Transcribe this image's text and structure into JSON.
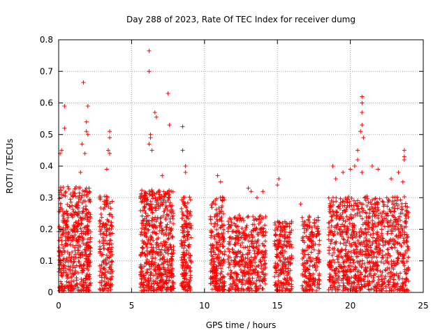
{
  "chart_data": {
    "type": "scatter",
    "title": "Day 288 of 2023, Rate Of TEC Index for receiver dumg",
    "xlabel": "GPS time / hours",
    "ylabel": "ROTI / TECUs",
    "xlim": [
      0,
      25
    ],
    "ylim": [
      0,
      0.8
    ],
    "xticks": [
      "0",
      "5",
      "10",
      "15",
      "20",
      "25"
    ],
    "yticks": [
      "0",
      "0.1",
      "0.2",
      "0.3",
      "0.4",
      "0.5",
      "0.6",
      "0.7",
      "0.8"
    ],
    "grid": true,
    "legend": "none",
    "marker": "plus",
    "color": "#ff0000",
    "series": [
      {
        "clusters": [
          {
            "x": [
              0.0,
              2.2
            ],
            "y_max": 0.33,
            "density": 520
          },
          {
            "x": [
              2.8,
              3.7
            ],
            "y_max": 0.3,
            "density": 180
          },
          {
            "x": [
              5.6,
              7.9
            ],
            "y_max": 0.32,
            "density": 560
          },
          {
            "x": [
              8.4,
              9.1
            ],
            "y_max": 0.3,
            "density": 170
          },
          {
            "x": [
              10.4,
              11.4
            ],
            "y_max": 0.3,
            "density": 230
          },
          {
            "x": [
              11.6,
              14.2
            ],
            "y_max": 0.24,
            "density": 420
          },
          {
            "x": [
              14.8,
              16.0
            ],
            "y_max": 0.22,
            "density": 220
          },
          {
            "x": [
              16.7,
              17.9
            ],
            "y_max": 0.24,
            "density": 200
          },
          {
            "x": [
              18.5,
              24.0
            ],
            "y_max": 0.3,
            "density": 1000
          }
        ],
        "outliers": [
          {
            "x": 0.1,
            "y": 0.44
          },
          {
            "x": 0.2,
            "y": 0.45
          },
          {
            "x": 0.4,
            "y": 0.59
          },
          {
            "x": 0.4,
            "y": 0.52
          },
          {
            "x": 1.7,
            "y": 0.665
          },
          {
            "x": 1.6,
            "y": 0.47
          },
          {
            "x": 1.9,
            "y": 0.54
          },
          {
            "x": 1.9,
            "y": 0.51
          },
          {
            "x": 2.0,
            "y": 0.59
          },
          {
            "x": 2.0,
            "y": 0.5
          },
          {
            "x": 1.8,
            "y": 0.44
          },
          {
            "x": 1.5,
            "y": 0.38
          },
          {
            "x": 3.5,
            "y": 0.51
          },
          {
            "x": 3.5,
            "y": 0.49
          },
          {
            "x": 3.4,
            "y": 0.45
          },
          {
            "x": 3.5,
            "y": 0.44
          },
          {
            "x": 3.3,
            "y": 0.39
          },
          {
            "x": 6.2,
            "y": 0.765
          },
          {
            "x": 6.2,
            "y": 0.7
          },
          {
            "x": 6.6,
            "y": 0.57
          },
          {
            "x": 6.7,
            "y": 0.555
          },
          {
            "x": 6.3,
            "y": 0.5
          },
          {
            "x": 6.3,
            "y": 0.49
          },
          {
            "x": 6.2,
            "y": 0.47
          },
          {
            "x": 6.4,
            "y": 0.45
          },
          {
            "x": 7.5,
            "y": 0.63
          },
          {
            "x": 7.6,
            "y": 0.53
          },
          {
            "x": 7.1,
            "y": 0.37
          },
          {
            "x": 8.5,
            "y": 0.525
          },
          {
            "x": 8.5,
            "y": 0.45
          },
          {
            "x": 8.7,
            "y": 0.4
          },
          {
            "x": 8.7,
            "y": 0.38
          },
          {
            "x": 10.9,
            "y": 0.37
          },
          {
            "x": 11.1,
            "y": 0.35
          },
          {
            "x": 13.0,
            "y": 0.33
          },
          {
            "x": 13.2,
            "y": 0.32
          },
          {
            "x": 14.0,
            "y": 0.32
          },
          {
            "x": 13.6,
            "y": 0.3
          },
          {
            "x": 15.1,
            "y": 0.36
          },
          {
            "x": 15.0,
            "y": 0.34
          },
          {
            "x": 16.6,
            "y": 0.28
          },
          {
            "x": 20.8,
            "y": 0.62
          },
          {
            "x": 20.8,
            "y": 0.6
          },
          {
            "x": 20.8,
            "y": 0.57
          },
          {
            "x": 20.8,
            "y": 0.53
          },
          {
            "x": 20.7,
            "y": 0.51
          },
          {
            "x": 20.9,
            "y": 0.49
          },
          {
            "x": 20.5,
            "y": 0.45
          },
          {
            "x": 20.5,
            "y": 0.42
          },
          {
            "x": 20.3,
            "y": 0.4
          },
          {
            "x": 20.0,
            "y": 0.39
          },
          {
            "x": 19.5,
            "y": 0.38
          },
          {
            "x": 21.5,
            "y": 0.4
          },
          {
            "x": 21.9,
            "y": 0.39
          },
          {
            "x": 20.8,
            "y": 0.38
          },
          {
            "x": 22.8,
            "y": 0.36
          },
          {
            "x": 23.3,
            "y": 0.38
          },
          {
            "x": 23.7,
            "y": 0.45
          },
          {
            "x": 23.7,
            "y": 0.43
          },
          {
            "x": 23.7,
            "y": 0.42
          },
          {
            "x": 23.6,
            "y": 0.35
          },
          {
            "x": 18.8,
            "y": 0.4
          },
          {
            "x": 19.0,
            "y": 0.36
          }
        ]
      }
    ]
  }
}
